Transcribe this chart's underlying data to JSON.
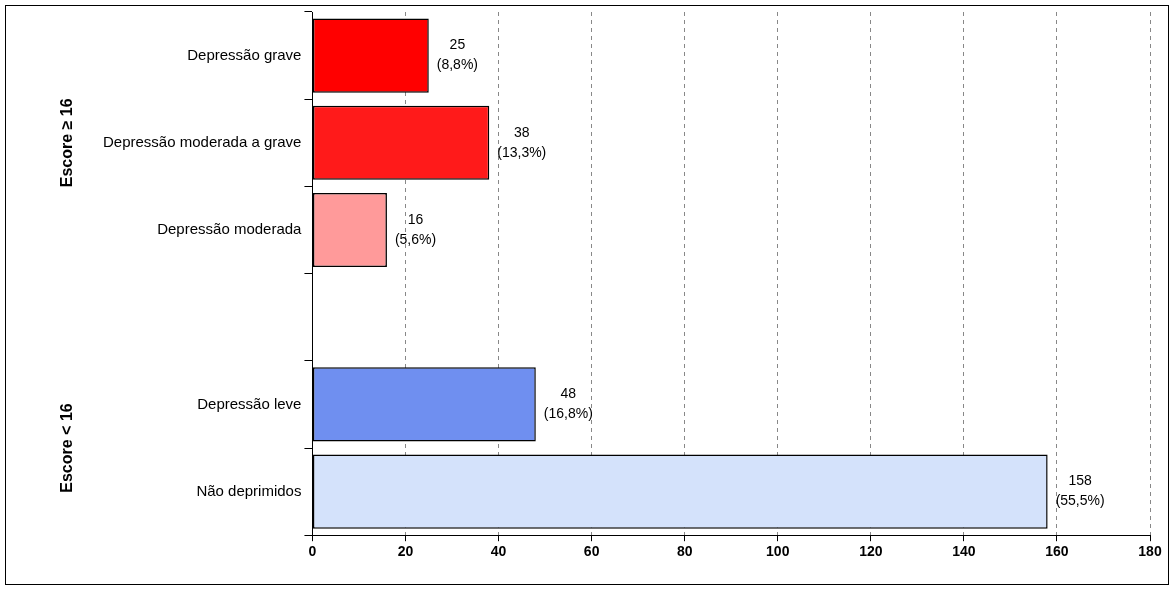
{
  "chart_data": {
    "type": "bar",
    "orientation": "horizontal",
    "categories": [
      "Depressão grave",
      "Depressão moderada a grave",
      "Depressão moderada",
      null,
      "Depressão leve",
      "Não deprimidos"
    ],
    "values": [
      25,
      38,
      16,
      null,
      48,
      158
    ],
    "colors": [
      "#ff0000",
      "#ff1a1a",
      "#ff9a9a",
      "#ffffff",
      "#6f8ff0",
      "#d4e2fb"
    ],
    "value_labels": [
      "25\n(8,8%)",
      "38\n(13,3%)",
      "16\n(5,6%)",
      null,
      "48\n(16,8%)",
      "158\n(55,5%)"
    ],
    "xlim": [
      0,
      180
    ],
    "xticks": [
      0,
      20,
      40,
      60,
      80,
      100,
      120,
      140,
      160,
      180
    ],
    "grid": "x",
    "line_style": "dashed",
    "legend": false,
    "annotations": [
      "Escore ≥ 16",
      "Escore < 16"
    ]
  }
}
